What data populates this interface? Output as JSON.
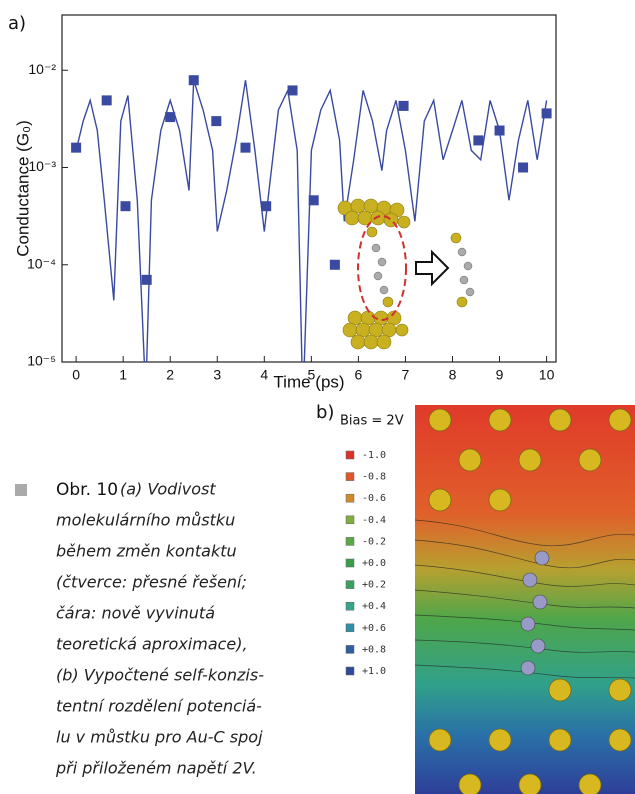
{
  "chart_data": {
    "type": "line",
    "panel_label": "a)",
    "x_label": "Time (ps)",
    "y_label": "Conductance (G₀)",
    "log_y": true,
    "xlim": [
      -0.3,
      10.2
    ],
    "xticks": [
      0,
      1,
      2,
      3,
      4,
      5,
      6,
      7,
      8,
      9,
      10
    ],
    "ylim": [
      1e-05,
      0.037
    ],
    "yticks": [
      {
        "value": 1e-05,
        "label": "10⁻⁵"
      },
      {
        "value": 0.0001,
        "label": "10⁻⁴"
      },
      {
        "value": 0.001,
        "label": "10⁻³"
      },
      {
        "value": 0.01,
        "label": "10⁻²"
      }
    ],
    "series": [
      {
        "type": "line",
        "color": "#3a4aa0",
        "x": [
          0,
          0.15,
          0.3,
          0.45,
          0.6,
          0.8,
          0.95,
          1.1,
          1.3,
          1.45,
          1.5,
          1.6,
          1.8,
          2.0,
          2.2,
          2.4,
          2.5,
          2.7,
          2.9,
          3.0,
          3.2,
          3.4,
          3.6,
          3.8,
          4.0,
          4.1,
          4.3,
          4.5,
          4.7,
          4.8,
          4.85,
          5.0,
          5.2,
          5.4,
          5.6,
          5.7,
          5.9,
          6.1,
          6.3,
          6.5,
          6.6,
          6.8,
          7.0,
          7.2,
          7.4,
          7.6,
          7.8,
          8.0,
          8.2,
          8.4,
          8.6,
          8.8,
          9.0,
          9.2,
          9.4,
          9.6,
          9.8,
          10.0
        ],
        "values": [
          0.0015,
          0.003,
          0.0049,
          0.0024,
          0.00046,
          4.3e-05,
          0.003,
          0.0055,
          0.00046,
          1e-05,
          1e-05,
          0.00046,
          0.0024,
          0.0049,
          0.0024,
          0.00058,
          0.0079,
          0.0039,
          0.0015,
          0.00022,
          0.00058,
          0.0019,
          0.0079,
          0.0015,
          0.00022,
          0.00058,
          0.0039,
          0.0062,
          0.0015,
          1e-05,
          1e-05,
          0.0015,
          0.0039,
          0.0062,
          0.0019,
          0.00028,
          0.0012,
          0.0062,
          0.003,
          0.00093,
          0.0024,
          0.0049,
          0.0015,
          0.00028,
          0.003,
          0.0049,
          0.0012,
          0.0024,
          0.0049,
          0.0015,
          0.0012,
          0.0049,
          0.0024,
          0.00046,
          0.0019,
          0.0049,
          0.0012,
          0.0049
        ]
      },
      {
        "type": "scatter",
        "color": "#3a4aa0",
        "x": [
          0,
          0.65,
          1.05,
          1.5,
          2.0,
          2.5,
          2.98,
          3.6,
          4.04,
          4.6,
          5.05,
          5.5,
          6.96,
          8.55,
          9.0,
          9.5,
          10.0
        ],
        "values": [
          0.0016,
          0.0049,
          0.0004,
          7e-05,
          0.0033,
          0.0079,
          0.003,
          0.0016,
          0.0004,
          0.0062,
          0.00046,
          0.0001,
          0.0043,
          0.0019,
          0.0024,
          0.001,
          0.0036
        ]
      }
    ]
  },
  "panel_b": {
    "label": "b)",
    "legend_title": "Bias = 2V",
    "levels": [
      {
        "label": "-1.0",
        "color": "#d8352a"
      },
      {
        "label": "-0.8",
        "color": "#e0552a"
      },
      {
        "label": "-0.6",
        "color": "#d08a2e"
      },
      {
        "label": "-0.4",
        "color": "#7fae3e"
      },
      {
        "label": "-0.2",
        "color": "#5aa845"
      },
      {
        "label": "+0.0",
        "color": "#3a9e48"
      },
      {
        "label": "+0.2",
        "color": "#3aa060"
      },
      {
        "label": "+0.4",
        "color": "#36a38a"
      },
      {
        "label": "+0.6",
        "color": "#2e8fa8"
      },
      {
        "label": "+0.8",
        "color": "#2e5f9e"
      },
      {
        "label": "+1.0",
        "color": "#2e4a9a"
      }
    ]
  },
  "caption": {
    "label": "Obr. 10",
    "lines": [
      "(a) Vodivost",
      "molekulárního můstku",
      "během změn kontaktu",
      "(čtverce: přesné řešení;",
      "čára: nově vyvinutá",
      "teoretická aproximace),",
      "(b) Vypočtené self-konzis-",
      "tentní rozdělení potenciá-",
      "lu v můstku pro Au-C spoj",
      "při přiloženém napětí 2V."
    ]
  }
}
